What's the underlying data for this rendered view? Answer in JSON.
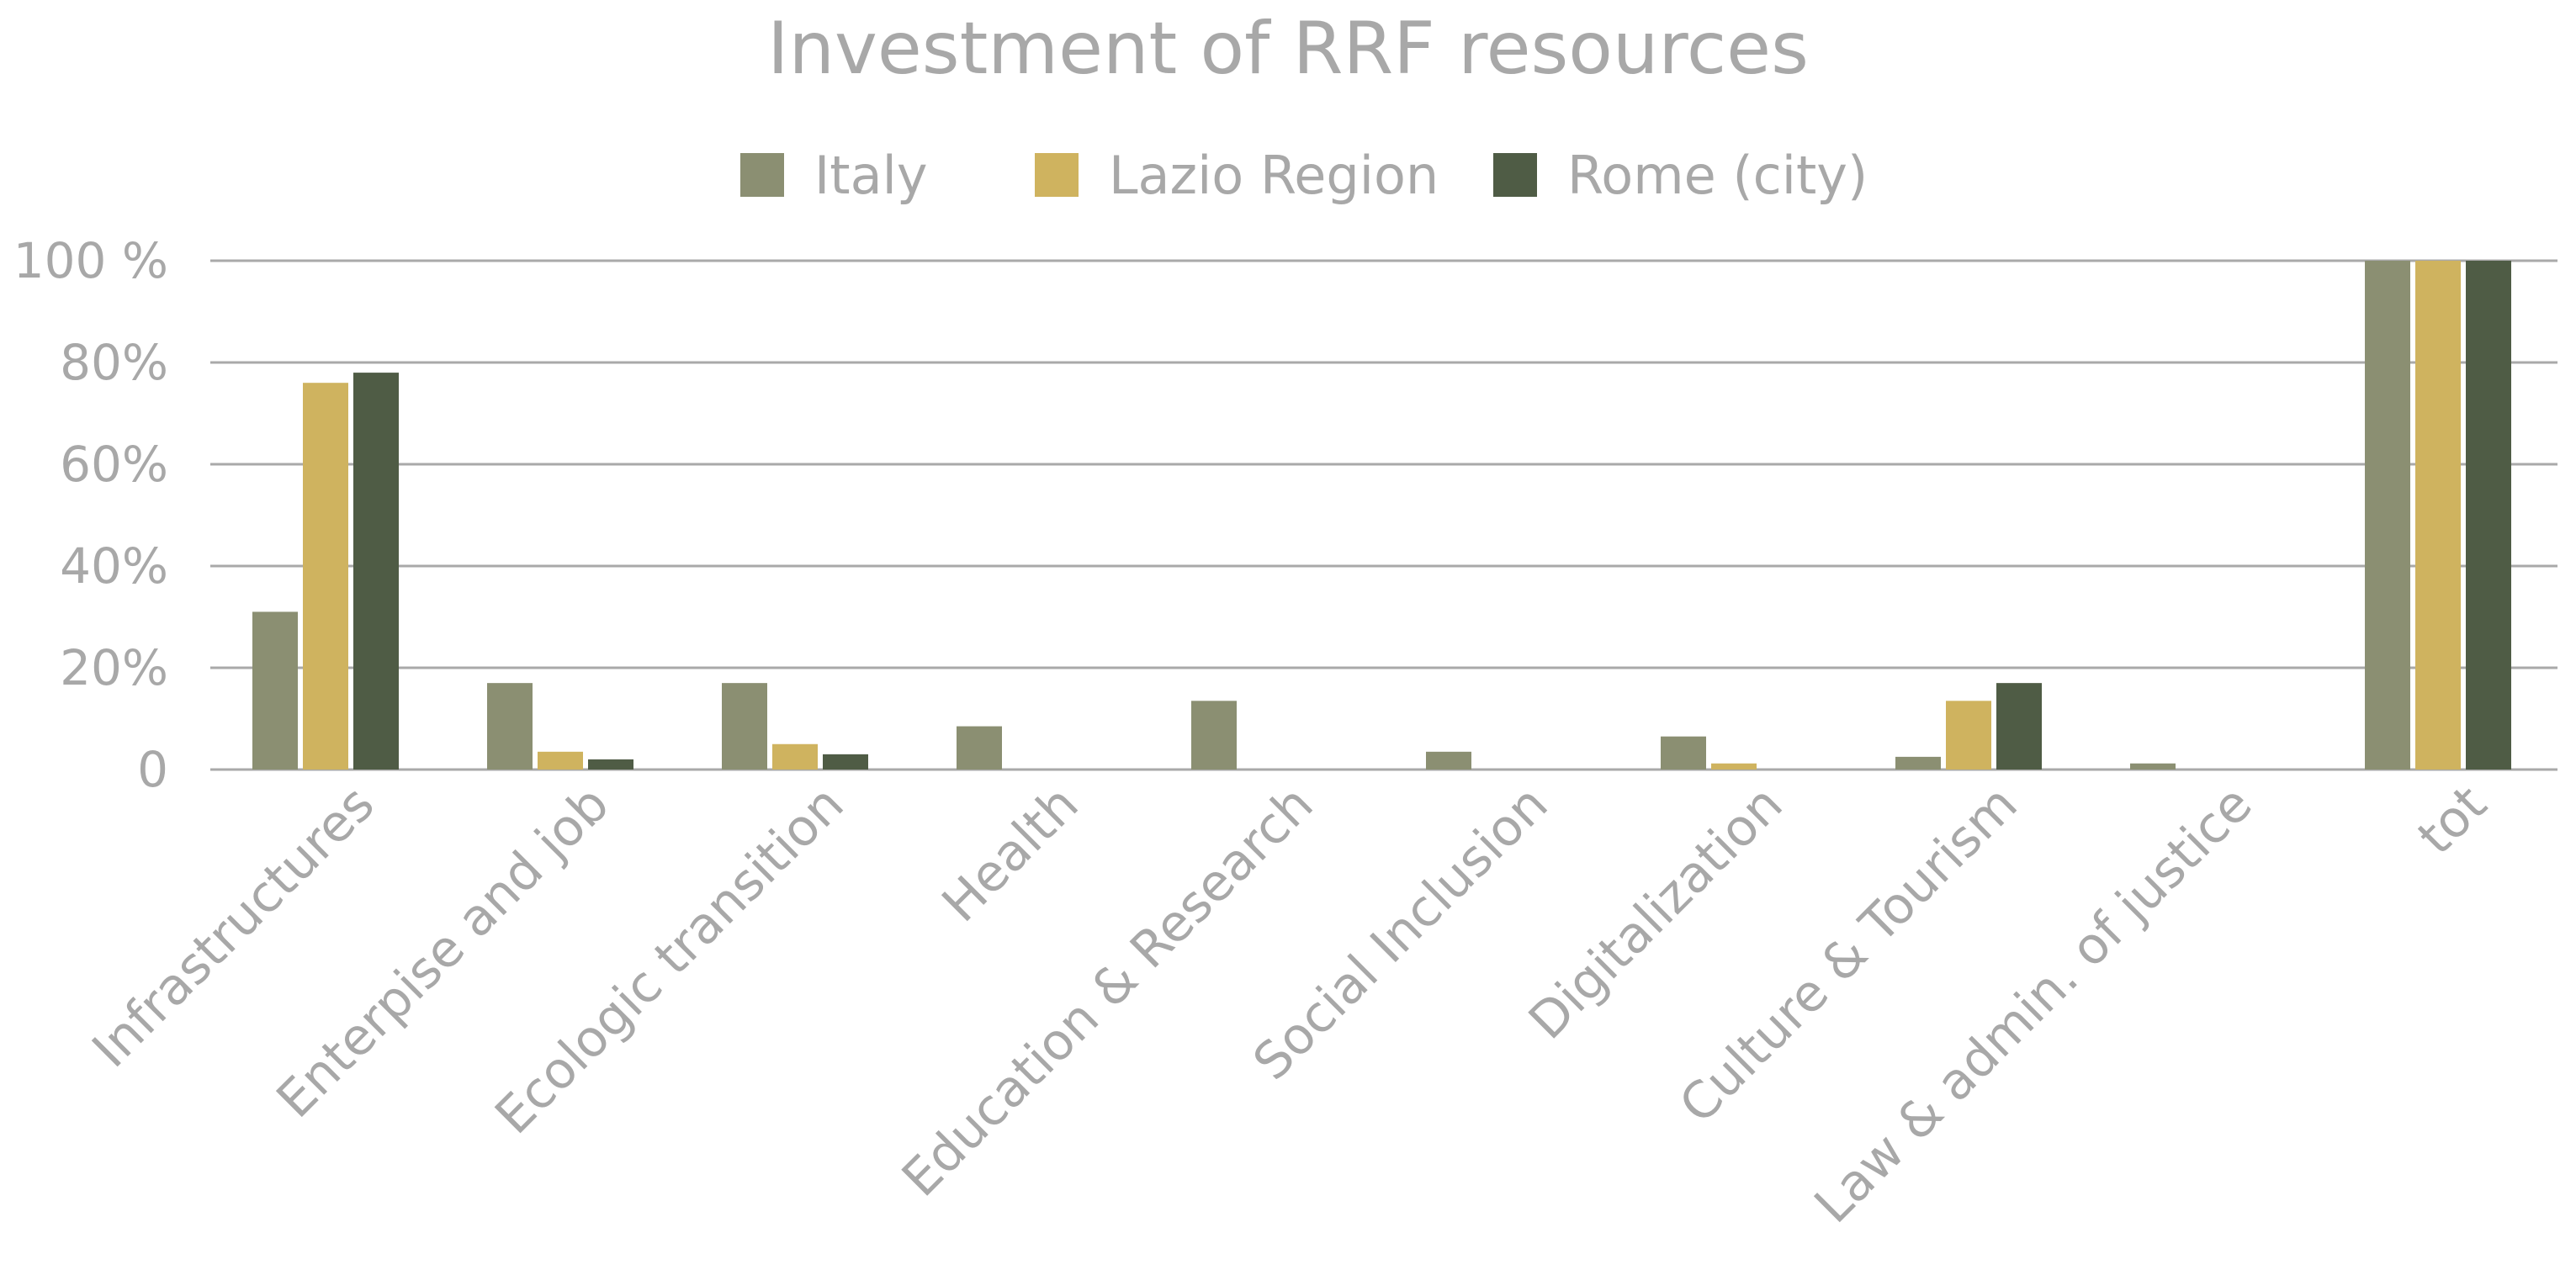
{
  "chart_data": {
    "type": "bar",
    "title": "Investment of RRF resources",
    "categories": [
      "Infrastructures",
      "Enterpise and job",
      "Ecologic transition",
      "Health",
      "Education & Research",
      "Social Inclusion",
      "Digitalization",
      "Culture & Tourism",
      "Law & admin. of justice",
      "tot"
    ],
    "series": [
      {
        "name": "Italy",
        "color": "#8b8f72",
        "values": [
          31,
          17,
          17,
          8.5,
          13.5,
          3.5,
          6.5,
          2.5,
          1.2,
          100
        ]
      },
      {
        "name": "Lazio Region",
        "color": "#cfb35f",
        "values": [
          76,
          3.5,
          5,
          0,
          0,
          0,
          1.2,
          13.5,
          0,
          100
        ]
      },
      {
        "name": "Rome (city)",
        "color": "#4f5c45",
        "values": [
          78,
          2,
          3,
          0,
          0,
          0,
          0,
          17,
          0,
          100
        ]
      }
    ],
    "ylim": [
      0,
      100
    ],
    "yticks": [
      0,
      20,
      40,
      60,
      80,
      100
    ],
    "ytick_labels": [
      "0",
      "20%",
      "40%",
      "60%",
      "80%",
      "100 %"
    ],
    "grid": true,
    "legend": "top-center"
  }
}
